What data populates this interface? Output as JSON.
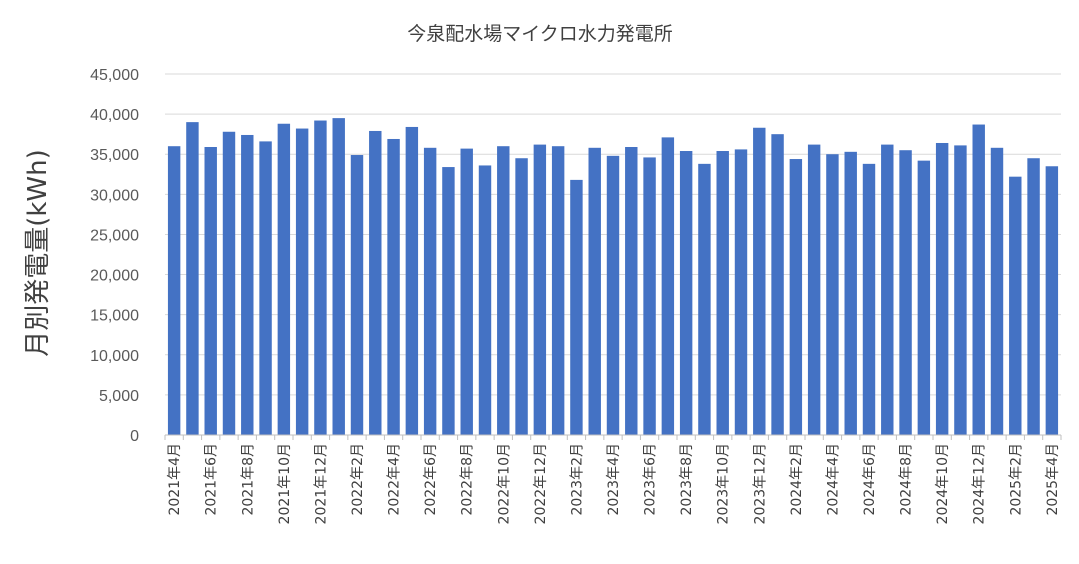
{
  "chart_data": {
    "type": "bar",
    "title": "今泉配水場マイクロ水力発電所",
    "xlabel": "",
    "ylabel": "月別発電量(kWh)",
    "ylim": [
      0,
      45000
    ],
    "yticks": [
      0,
      5000,
      10000,
      15000,
      20000,
      25000,
      30000,
      35000,
      40000,
      45000
    ],
    "ytick_labels": [
      "0",
      "5,000",
      "10,000",
      "15,000",
      "20,000",
      "25,000",
      "30,000",
      "35,000",
      "40,000",
      "45,000"
    ],
    "grid": true,
    "legend": "none",
    "bar_color": "#4472c4",
    "categories": [
      "2021年4月",
      "2021年5月",
      "2021年6月",
      "2021年7月",
      "2021年8月",
      "2021年9月",
      "2021年10月",
      "2021年11月",
      "2021年12月",
      "2022年1月",
      "2022年2月",
      "2022年3月",
      "2022年4月",
      "2022年5月",
      "2022年6月",
      "2022年7月",
      "2022年8月",
      "2022年9月",
      "2022年10月",
      "2022年11月",
      "2022年12月",
      "2023年1月",
      "2023年2月",
      "2023年3月",
      "2023年4月",
      "2023年5月",
      "2023年6月",
      "2023年7月",
      "2023年8月",
      "2023年9月",
      "2023年10月",
      "2023年11月",
      "2023年12月",
      "2024年1月",
      "2024年2月",
      "2024年3月",
      "2024年4月",
      "2024年5月",
      "2024年6月",
      "2024年7月",
      "2024年8月",
      "2024年9月",
      "2024年10月",
      "2024年11月",
      "2024年12月",
      "2025年1月",
      "2025年2月",
      "2025年3月",
      "2025年4月"
    ],
    "tick_labels_shown": [
      "2021年4月",
      "2021年6月",
      "2021年8月",
      "2021年10月",
      "2021年12月",
      "2022年2月",
      "2022年4月",
      "2022年6月",
      "2022年8月",
      "2022年10月",
      "2022年12月",
      "2023年2月",
      "2023年4月",
      "2023年6月",
      "2023年8月",
      "2023年10月",
      "2023年12月",
      "2024年2月",
      "2024年4月",
      "2024年6月",
      "2024年8月",
      "2024年10月",
      "2024年12月",
      "2025年2月",
      "2025年4月"
    ],
    "values": [
      36000,
      39000,
      35900,
      37800,
      37400,
      36600,
      38800,
      38200,
      39200,
      39500,
      34900,
      37900,
      36900,
      38400,
      35800,
      33400,
      35700,
      33600,
      36000,
      34500,
      36200,
      36000,
      31800,
      35800,
      34800,
      35900,
      34600,
      37100,
      35400,
      33800,
      35400,
      35600,
      38300,
      37500,
      34400,
      36200,
      35000,
      35300,
      33800,
      36200,
      35500,
      34200,
      36400,
      36100,
      38700,
      35800,
      32200,
      34500,
      33500
    ]
  }
}
